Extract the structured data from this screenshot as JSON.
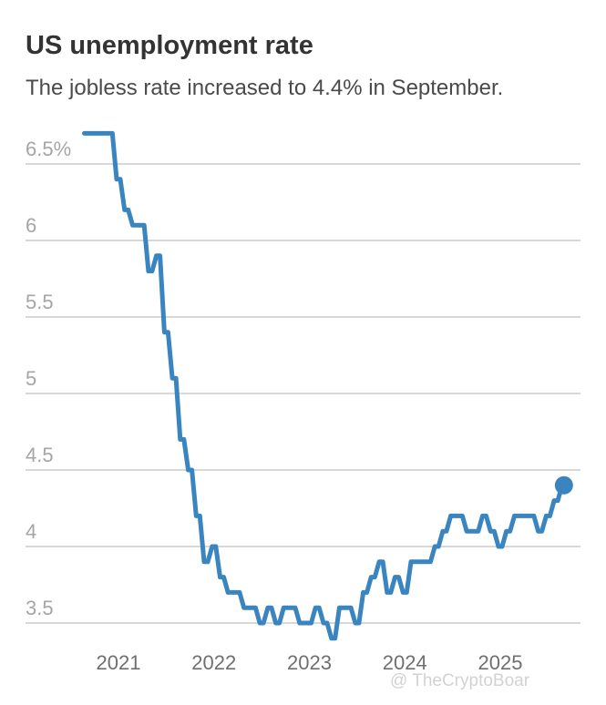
{
  "title": "US unemployment rate",
  "subtitle": "The jobless rate increased to 4.4% in September.",
  "watermark": "@ TheCryptoBoar",
  "colors": {
    "line": "#3a85bf",
    "grid": "#cccccc",
    "tick": "#a5a5a5",
    "title": "#333333"
  },
  "chart_data": {
    "type": "line",
    "title": "US unemployment rate",
    "subtitle": "The jobless rate increased to 4.4% in September.",
    "xlabel": "",
    "ylabel": "",
    "ylim": [
      3.4,
      6.6
    ],
    "grid": true,
    "y_ticks": [
      {
        "value": 6.5,
        "label": "6.5%"
      },
      {
        "value": 6,
        "label": "6"
      },
      {
        "value": 5.5,
        "label": "5.5"
      },
      {
        "value": 5,
        "label": "5"
      },
      {
        "value": 4.5,
        "label": "4.5"
      },
      {
        "value": 4,
        "label": "4"
      },
      {
        "value": 3.5,
        "label": "3.5"
      }
    ],
    "x_ticks": [
      "2021",
      "2022",
      "2023",
      "2024",
      "2025"
    ],
    "series": [
      {
        "x": [
          "2020-11",
          "2020-12",
          "2021-01",
          "2021-02",
          "2021-03",
          "2021-04",
          "2021-05",
          "2021-06",
          "2021-07",
          "2021-08",
          "2021-09",
          "2021-10",
          "2021-11",
          "2021-12",
          "2022-01",
          "2022-02",
          "2022-03",
          "2022-04",
          "2022-05",
          "2022-06",
          "2022-07",
          "2022-08",
          "2022-09",
          "2022-10",
          "2022-11",
          "2022-12",
          "2023-01",
          "2023-02",
          "2023-03",
          "2023-04",
          "2023-05",
          "2023-06",
          "2023-07",
          "2023-08",
          "2023-09",
          "2023-10",
          "2023-11",
          "2023-12",
          "2024-01",
          "2024-02",
          "2024-03",
          "2024-04",
          "2024-05",
          "2024-06",
          "2024-07",
          "2024-08",
          "2024-09",
          "2024-10",
          "2024-11",
          "2024-12",
          "2025-01",
          "2025-02",
          "2025-03",
          "2025-04",
          "2025-05",
          "2025-06",
          "2025-07",
          "2025-08",
          "2025-09"
        ],
        "values": [
          6.7,
          6.7,
          6.4,
          6.2,
          6.1,
          6.1,
          5.8,
          5.9,
          5.4,
          5.1,
          4.7,
          4.5,
          4.2,
          3.9,
          4.0,
          3.8,
          3.7,
          3.7,
          3.6,
          3.6,
          3.5,
          3.6,
          3.5,
          3.6,
          3.6,
          3.5,
          3.5,
          3.6,
          3.5,
          3.4,
          3.6,
          3.6,
          3.5,
          3.7,
          3.8,
          3.9,
          3.7,
          3.8,
          3.7,
          3.9,
          3.9,
          3.9,
          4.0,
          4.1,
          4.2,
          4.2,
          4.1,
          4.1,
          4.2,
          4.1,
          4.0,
          4.1,
          4.2,
          4.2,
          4.2,
          4.1,
          4.2,
          4.3,
          4.4
        ]
      }
    ]
  }
}
